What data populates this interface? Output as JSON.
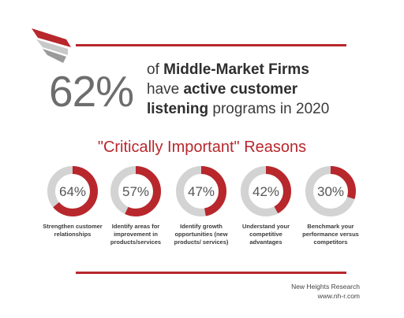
{
  "header": {
    "headline_pct": "62%",
    "line1_pre": "of ",
    "line1_bold": "Middle-Market Firms",
    "line2_pre": "have ",
    "line2_bold": "active customer",
    "line3_bold": "listening",
    "line3_post": " programs in 2020"
  },
  "reasons_title": "\"Critically Important\" Reasons",
  "chart_data": {
    "type": "donut",
    "categories": [
      "Strengthen customer relationships",
      "Identify areas for improvement in products/services",
      "Identify growth opportunities (new products/ services)",
      "Understand your competitive advantages",
      "Benchmark your performance versus competitors"
    ],
    "values": [
      64,
      57,
      47,
      42,
      30
    ],
    "value_labels": [
      "64%",
      "57%",
      "47%",
      "42%",
      "30%"
    ],
    "colors": {
      "filled": "#b8272c",
      "remainder": "#d3d3d3"
    }
  },
  "footer": {
    "org": "New Heights Research",
    "url": "www.nh-r.com"
  },
  "colors": {
    "accent": "#b8272c",
    "gray": "#6d6d6d"
  },
  "icons": {
    "logo": "red-wing-logo"
  }
}
